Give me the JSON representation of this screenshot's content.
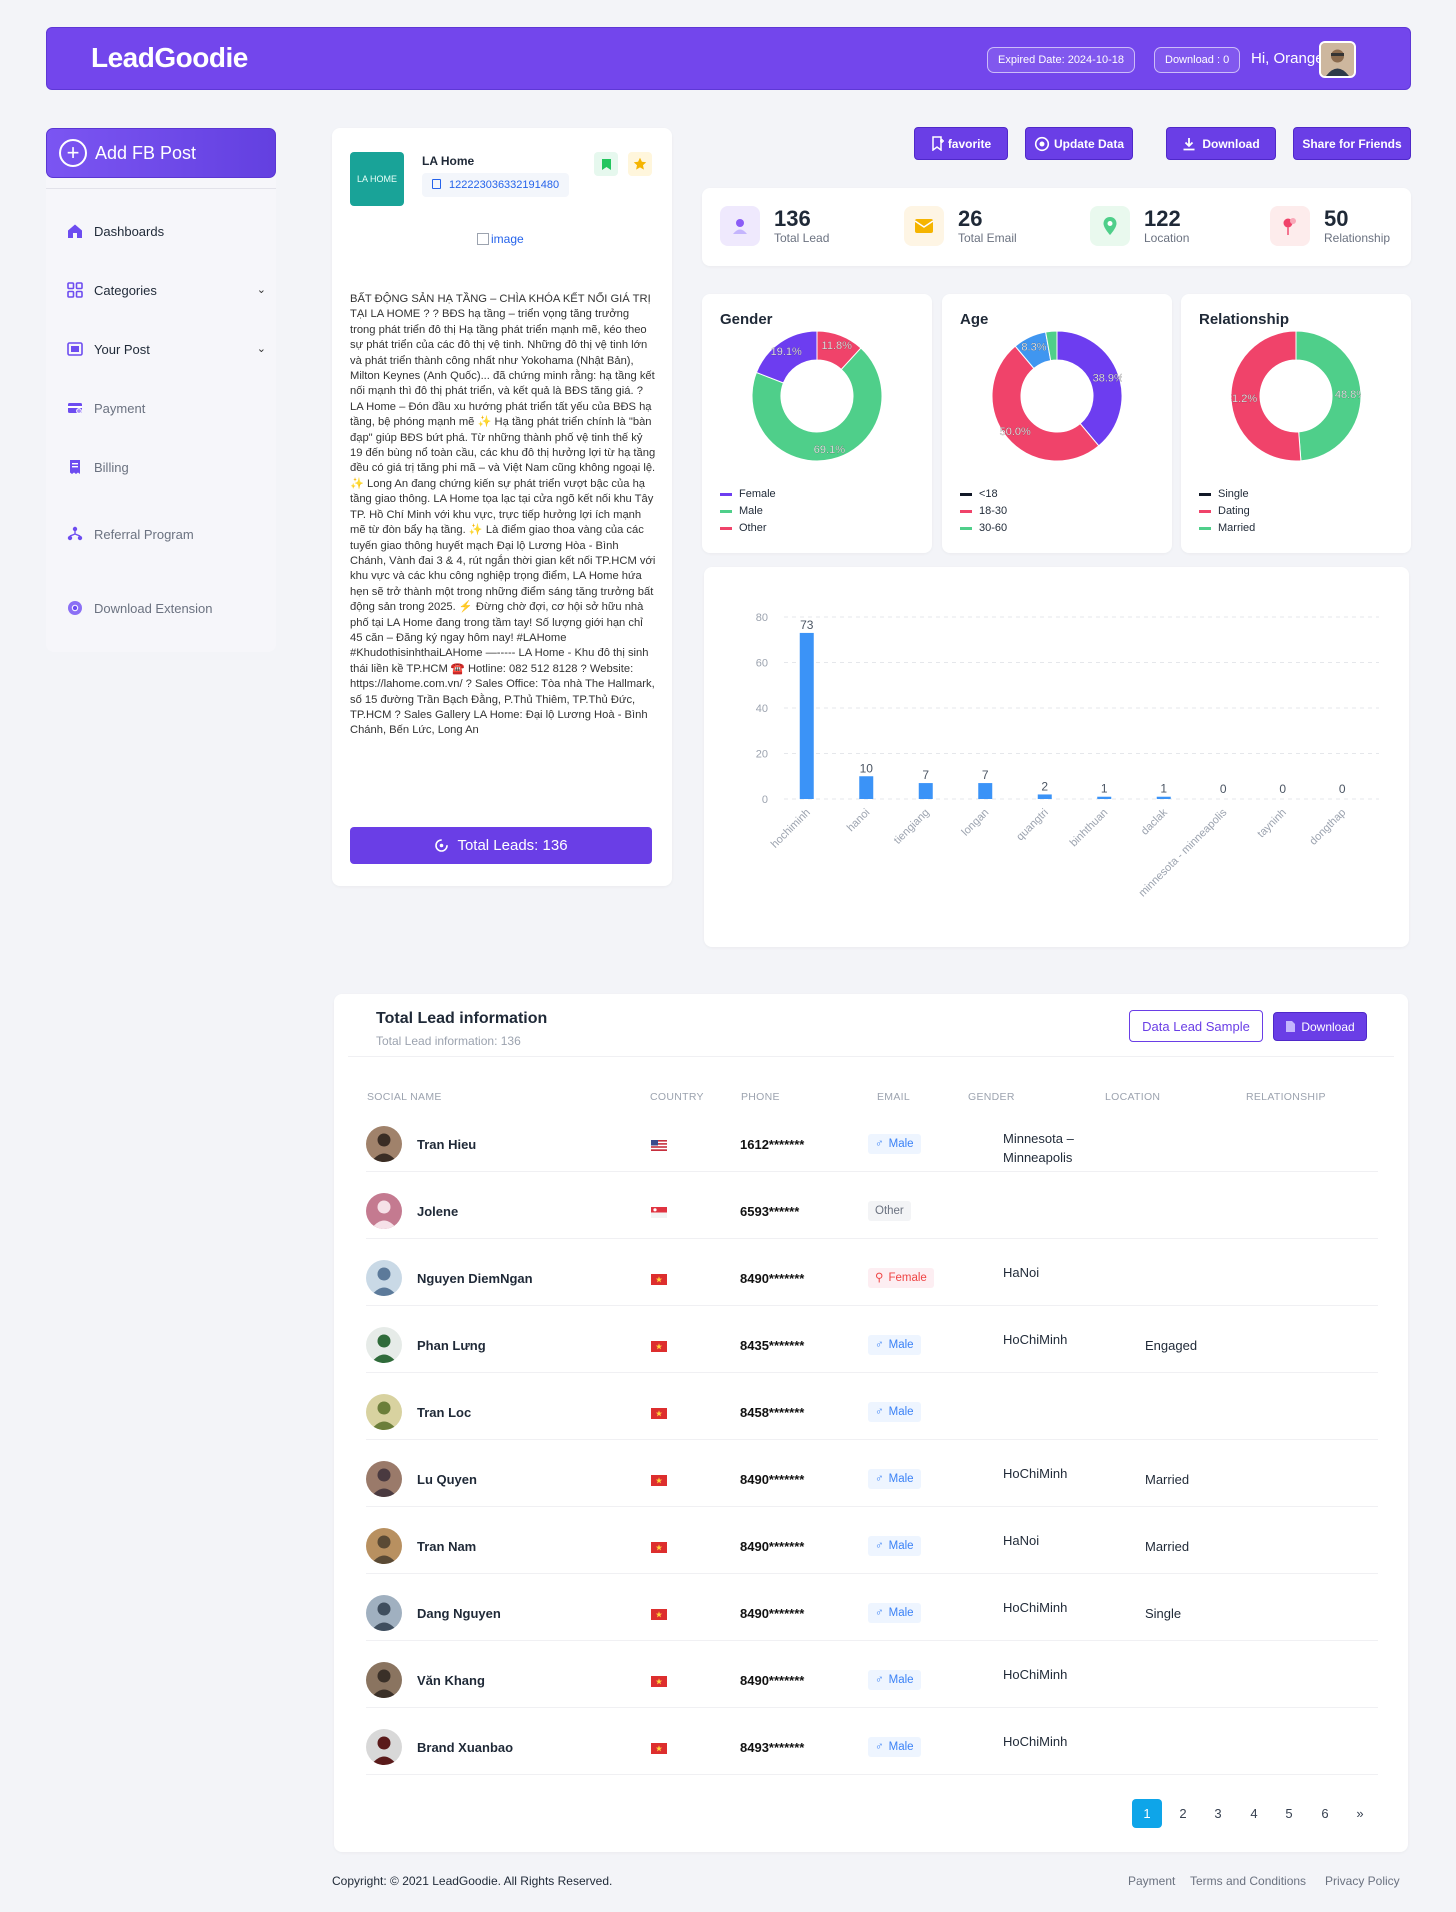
{
  "header": {
    "logo": "LeadGoodie",
    "expired": "Expired Date: 2024-10-18",
    "download_count": "Download : 0",
    "greeting": "Hi, Orange"
  },
  "sidebar": {
    "add_button": "Add FB Post",
    "items": [
      {
        "label": "Dashboards",
        "icon": "home-icon"
      },
      {
        "label": "Categories",
        "icon": "grid-icon"
      },
      {
        "label": "Your Post",
        "icon": "post-icon"
      },
      {
        "label": "Payment",
        "icon": "payment-icon"
      },
      {
        "label": "Billing",
        "icon": "billing-icon"
      },
      {
        "label": "Referral Program",
        "icon": "referral-icon"
      },
      {
        "label": "Download Extension",
        "icon": "chrome-icon"
      }
    ]
  },
  "post": {
    "page_name": "LA Home",
    "logo_text": "LA HOME",
    "post_id": "122223036332191480",
    "image_alt": "image",
    "content": "BẤT ĐỘNG SẢN HẠ TẦNG – CHÌA KHÓA KẾT NỐI GIÁ TRỊ TẠI LA HOME ? ? BĐS hạ tầng – triển vọng tăng trưởng trong phát triển đô thị Hạ tầng phát triển mạnh mẽ, kéo theo sự phát triển của các đô thị vệ tinh. Những đô thị vệ tinh lớn và phát triển thành công nhất như Yokohama (Nhật Bản), Milton Keynes (Anh Quốc)... đã chứng minh rằng: hạ tầng kết nối mạnh thì đô thị phát triển, và kết quả là BĐS tăng giá. ? LA Home – Đón đầu xu hướng phát triển tất yếu của BĐS hạ tầng, bệ phóng mạnh mẽ ✨ Hạ tầng phát triển chính là \"bàn đạp\" giúp BĐS bứt phá. Từ những thành phố vệ tinh thế kỷ 19 đến bùng nổ toàn cầu, các khu đô thị hưởng lợi từ hạ tầng đều có giá trị tăng phi mã – và Việt Nam cũng không ngoại lệ. ✨ Long An đang chứng kiến sự phát triển vượt bậc của hạ tầng giao thông. LA Home tọa lạc tại cửa ngõ kết nối khu Tây TP. Hồ Chí Minh với khu vực, trực tiếp hưởng lợi ích mạnh mẽ từ đòn bẩy hạ tầng. ✨ Là điểm giao thoa vàng của các tuyến giao thông huyết mạch Đại lộ Lương Hòa - Bình Chánh, Vành đai 3 & 4, rút ngắn thời gian kết nối TP.HCM với khu vực và các khu công nghiệp trọng điểm, LA Home hứa hẹn sẽ trở thành một trong những điểm sáng tăng trưởng bất động sản trong 2025. ⚡ Đừng chờ đợi, cơ hội sở hữu nhà phố tại LA Home đang trong tầm tay! Số lượng giới hạn chỉ 45 căn – Đăng ký ngay hôm nay! #LAHome #KhudothisinhthaiLAHome —----- LA Home - Khu đô thị sinh thái liền kề TP.HCM ☎️ Hotline: 082 512 8128 ? Website: https://lahome.com.vn/ ? Sales Office: Tòa nhà The Hallmark, số 15 đường Trần Bạch Đằng, P.Thủ Thiêm, TP.Thủ Đức, TP.HCM ? Sales Gallery LA Home: Đại lộ Lương Hoà - Bình Chánh, Bến Lức, Long An",
    "total_leads_btn": "Total Leads: 136"
  },
  "actions": {
    "favorite": "favorite",
    "update": "Update Data",
    "download": "Download",
    "share": "Share for Friends"
  },
  "stats": [
    {
      "value": "136",
      "label": "Total Lead",
      "color": "#8b5cf6",
      "bg": "#efe9fd"
    },
    {
      "value": "26",
      "label": "Total Email",
      "color": "#f59e0b",
      "bg": "#fef5e4"
    },
    {
      "value": "122",
      "label": "Location",
      "color": "#22c55e",
      "bg": "#e9f9ee"
    },
    {
      "value": "50",
      "label": "Relationship",
      "color": "#ef4444",
      "bg": "#fdecec"
    }
  ],
  "chart_data": [
    {
      "type": "pie",
      "title": "Gender",
      "categories": [
        "Female",
        "Male",
        "Other"
      ],
      "values": [
        19.1,
        69.1,
        11.8
      ],
      "labels": [
        "19.1%",
        "69.1%",
        "11.8%"
      ],
      "colors": [
        "#6d3df0",
        "#4fcf8a",
        "#f0436a"
      ]
    },
    {
      "type": "pie",
      "title": "Age",
      "categories": [
        "<18",
        "18-30",
        "30-60"
      ],
      "legend_colors": [
        "#111827",
        "#f0436a",
        "#4fcf8a"
      ],
      "slices": [
        {
          "value": 38.9,
          "color": "#6d3df0",
          "label": "38.9%"
        },
        {
          "value": 50.0,
          "color": "#f0436a",
          "label": "50.0%"
        },
        {
          "value": 8.3,
          "color": "#4096f0",
          "label": "8.3%"
        },
        {
          "value": 2.8,
          "color": "#4fcf8a",
          "label": ""
        }
      ]
    },
    {
      "type": "pie",
      "title": "Relationship",
      "categories": [
        "Single",
        "Dating",
        "Married"
      ],
      "legend_colors": [
        "#111827",
        "#f0436a",
        "#4fcf8a"
      ],
      "slices": [
        {
          "value": 48.8,
          "color": "#4fcf8a",
          "label": "48.8%"
        },
        {
          "value": 51.2,
          "color": "#f0436a",
          "label": "51.2%"
        }
      ]
    },
    {
      "type": "bar",
      "categories": [
        "hochiminh",
        "hanoi",
        "tiengiang",
        "longan",
        "quangtri",
        "binhthuan",
        "daclak",
        "minnesota - minneapolis",
        "tayninh",
        "dongthap"
      ],
      "values": [
        73,
        10,
        7,
        7,
        2,
        1,
        1,
        0,
        0,
        0
      ],
      "ylim": [
        0,
        80
      ],
      "yticks": [
        0,
        20,
        40,
        60,
        80
      ],
      "color": "#3b93f7"
    }
  ],
  "table": {
    "title": "Total Lead information",
    "subtitle": "Total Lead information: 136",
    "sample_btn": "Data Lead Sample",
    "download_btn": "Download",
    "columns": [
      "SOCIAL NAME",
      "COUNTRY",
      "PHONE",
      "EMAIL",
      "GENDER",
      "LOCATION",
      "RELATIONSHIP"
    ],
    "rows": [
      {
        "name": "Tran Hieu",
        "country": "us",
        "phone": "1612*******",
        "gender": "Male",
        "location": "Minnesota – Minneapolis",
        "relationship": ""
      },
      {
        "name": "Jolene",
        "country": "sg",
        "phone": "6593******",
        "gender": "Other",
        "location": "",
        "relationship": ""
      },
      {
        "name": "Nguyen DiemNgan",
        "country": "vn",
        "phone": "8490*******",
        "gender": "Female",
        "location": "HaNoi",
        "relationship": ""
      },
      {
        "name": "Phan Lưng",
        "country": "vn",
        "phone": "8435*******",
        "gender": "Male",
        "location": "HoChiMinh",
        "relationship": "Engaged"
      },
      {
        "name": "Tran Loc",
        "country": "vn",
        "phone": "8458*******",
        "gender": "Male",
        "location": "",
        "relationship": ""
      },
      {
        "name": "Lu Quyen",
        "country": "vn",
        "phone": "8490*******",
        "gender": "Male",
        "location": "HoChiMinh",
        "relationship": "Married"
      },
      {
        "name": "Tran Nam",
        "country": "vn",
        "phone": "8490*******",
        "gender": "Male",
        "location": "HaNoi",
        "relationship": "Married"
      },
      {
        "name": "Dang Nguyen",
        "country": "vn",
        "phone": "8490*******",
        "gender": "Male",
        "location": "HoChiMinh",
        "relationship": "Single"
      },
      {
        "name": "Văn Khang",
        "country": "vn",
        "phone": "8490*******",
        "gender": "Male",
        "location": "HoChiMinh",
        "relationship": ""
      },
      {
        "name": "Brand Xuanbao",
        "country": "vn",
        "phone": "8493*******",
        "gender": "Male",
        "location": "HoChiMinh",
        "relationship": ""
      }
    ],
    "pages": [
      "1",
      "2",
      "3",
      "4",
      "5",
      "6",
      "»"
    ]
  },
  "footer": {
    "copyright": "Copyright: © 2021 LeadGoodie. All Rights Reserved.",
    "links": [
      "Payment",
      "Terms and Conditions",
      "Privacy Policy"
    ]
  }
}
